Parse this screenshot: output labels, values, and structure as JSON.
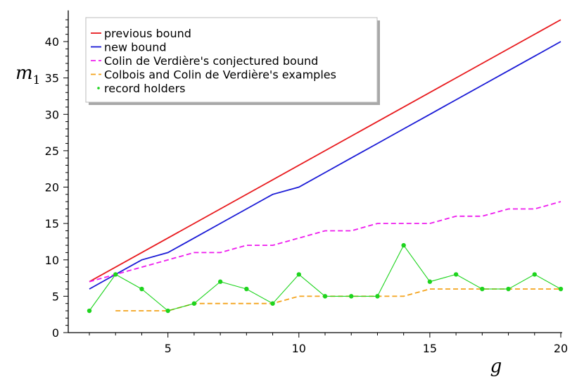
{
  "chart_data": {
    "type": "line",
    "xlabel": "g",
    "ylabel": "m",
    "ylabel_subscript": "1",
    "xlim": [
      1.6,
      20
    ],
    "ylim": [
      0,
      44
    ],
    "xticks": [
      5,
      10,
      15,
      20
    ],
    "yticks": [
      0,
      5,
      10,
      15,
      20,
      25,
      30,
      35,
      40
    ],
    "grid": false,
    "legend_position": "top-left",
    "series": [
      {
        "name": "previous bound",
        "color": "#e8191d",
        "style": "solid",
        "x": [
          2,
          20
        ],
        "y": [
          7,
          43
        ]
      },
      {
        "name": "new bound",
        "color": "#1a1ad6",
        "style": "solid",
        "x": [
          2,
          3,
          4,
          5,
          6,
          7,
          8,
          9,
          10,
          11,
          12,
          13,
          14,
          15,
          16,
          17,
          18,
          19,
          20
        ],
        "y": [
          6,
          8,
          10,
          11,
          13,
          15,
          17,
          19,
          20,
          22,
          24,
          26,
          28,
          30,
          32,
          34,
          36,
          38,
          40
        ]
      },
      {
        "name": "Colin de Verdière's conjectured bound",
        "color": "#ee1cee",
        "style": "dashed",
        "x": [
          2,
          3,
          4,
          5,
          6,
          7,
          8,
          9,
          10,
          11,
          12,
          13,
          14,
          15,
          16,
          17,
          18,
          19,
          20
        ],
        "y": [
          7,
          8,
          9,
          10,
          11,
          11,
          12,
          12,
          13,
          14,
          14,
          15,
          15,
          15,
          16,
          16,
          17,
          17,
          18
        ]
      },
      {
        "name": "Colbois and Colin de Verdière's examples",
        "color": "#f4a31c",
        "style": "dashed",
        "x": [
          3,
          4,
          5,
          6,
          7,
          8,
          9,
          10,
          11,
          12,
          13,
          14,
          15,
          16,
          17,
          18,
          19,
          20
        ],
        "y": [
          3,
          3,
          3,
          4,
          4,
          4,
          4,
          5,
          5,
          5,
          5,
          5,
          6,
          6,
          6,
          6,
          6,
          6
        ]
      },
      {
        "name": "record holders",
        "color": "#1ed41e",
        "style": "points",
        "x": [
          2,
          3,
          4,
          5,
          6,
          7,
          8,
          9,
          10,
          11,
          12,
          13,
          14,
          15,
          16,
          17,
          18,
          19,
          20
        ],
        "y": [
          3,
          8,
          6,
          3,
          4,
          7,
          6,
          4,
          8,
          5,
          5,
          5,
          12,
          7,
          8,
          6,
          6,
          8,
          6
        ]
      }
    ]
  }
}
